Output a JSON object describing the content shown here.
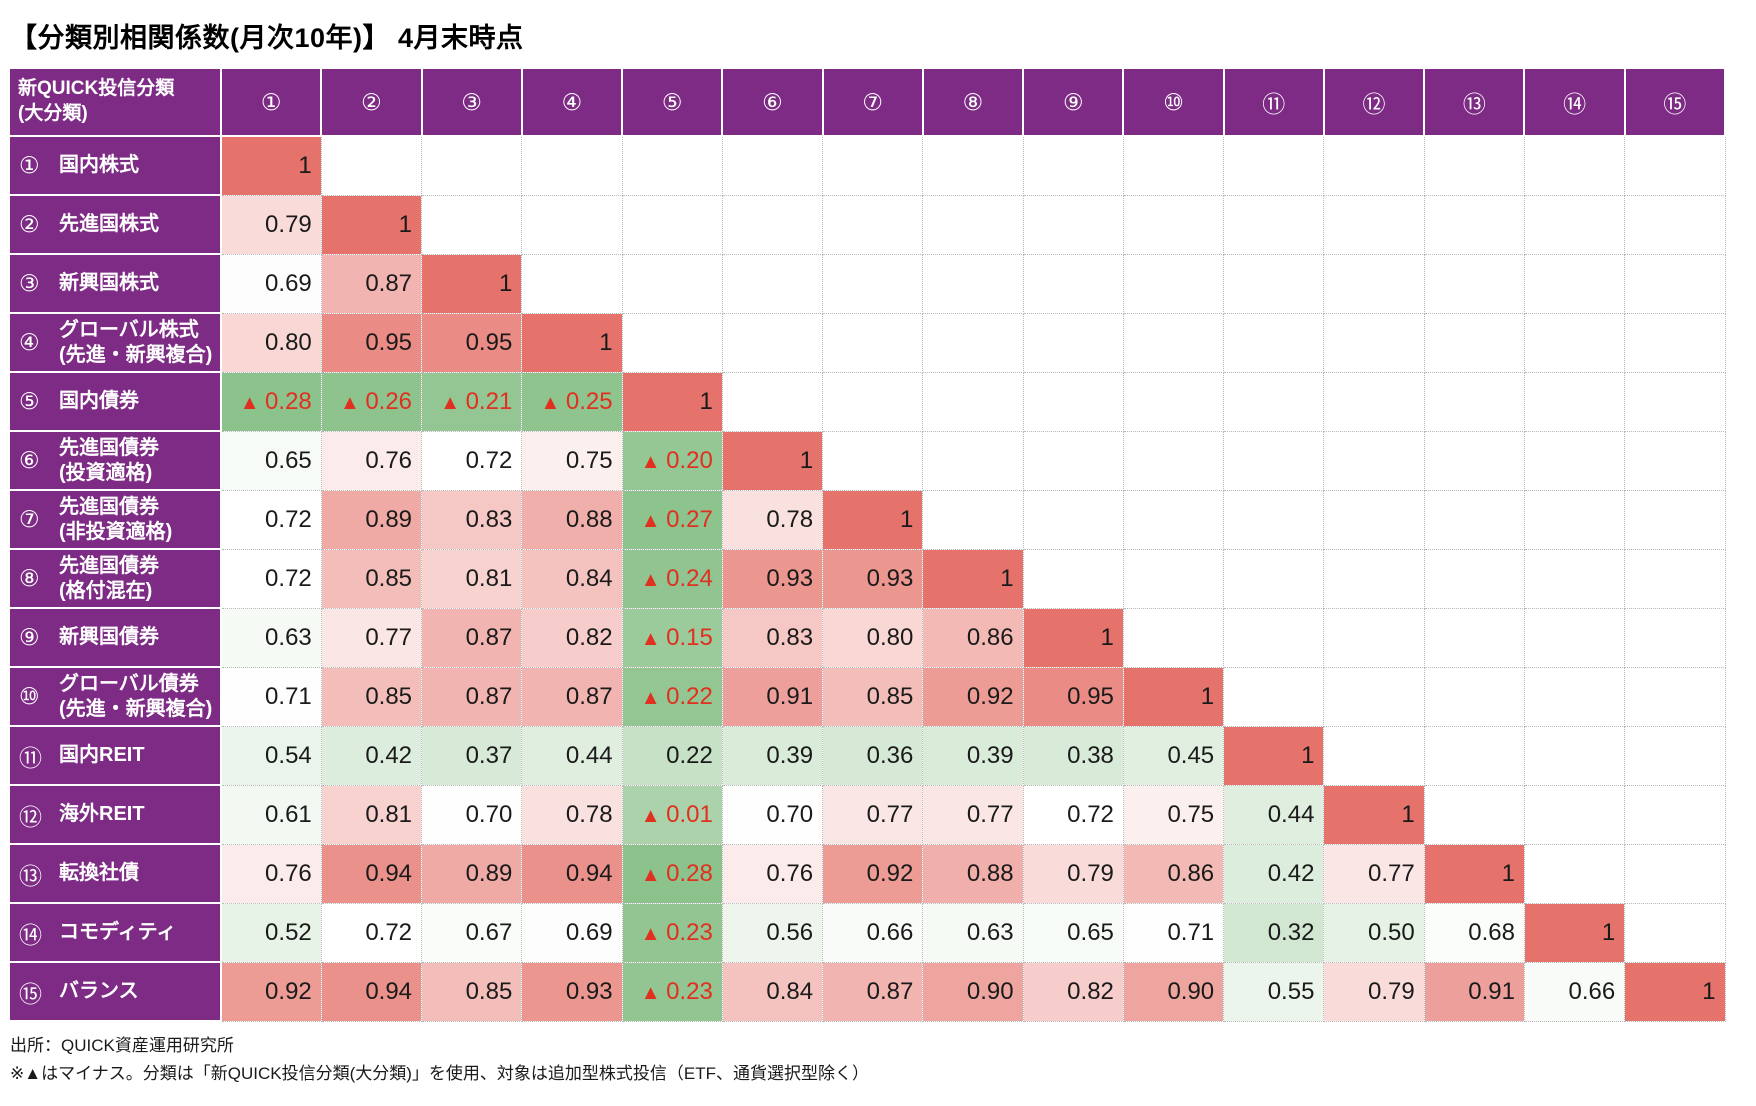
{
  "title": "【分類別相関係数(月次10年)】 4月末時点",
  "table": {
    "corner_header_lines": [
      "新QUICK投信分類",
      "(大分類)"
    ],
    "col_headers": [
      "①",
      "②",
      "③",
      "④",
      "⑤",
      "⑥",
      "⑦",
      "⑧",
      "⑨",
      "⑩",
      "⑪",
      "⑫",
      "⑬",
      "⑭",
      "⑮"
    ],
    "row_headers": [
      {
        "num": "①",
        "lines": [
          "国内株式"
        ]
      },
      {
        "num": "②",
        "lines": [
          "先進国株式"
        ]
      },
      {
        "num": "③",
        "lines": [
          "新興国株式"
        ]
      },
      {
        "num": "④",
        "lines": [
          "グローバル株式",
          "(先進・新興複合)"
        ]
      },
      {
        "num": "⑤",
        "lines": [
          "国内債券"
        ]
      },
      {
        "num": "⑥",
        "lines": [
          "先進国債券",
          "(投資適格)"
        ]
      },
      {
        "num": "⑦",
        "lines": [
          "先進国債券",
          "(非投資適格)"
        ]
      },
      {
        "num": "⑧",
        "lines": [
          "先進国債券",
          "(格付混在)"
        ]
      },
      {
        "num": "⑨",
        "lines": [
          "新興国債券"
        ]
      },
      {
        "num": "⑩",
        "lines": [
          "グローバル債券",
          "(先進・新興複合)"
        ]
      },
      {
        "num": "⑪",
        "lines": [
          "国内REIT"
        ]
      },
      {
        "num": "⑫",
        "lines": [
          "海外REIT"
        ]
      },
      {
        "num": "⑬",
        "lines": [
          "転換社債"
        ]
      },
      {
        "num": "⑭",
        "lines": [
          "コモディティ"
        ]
      },
      {
        "num": "⑮",
        "lines": [
          "バランス"
        ]
      }
    ]
  },
  "chart_data": {
    "type": "heatmap",
    "title": "【分類別相関係数(月次10年)】 4月末時点",
    "row_labels": [
      "① 国内株式",
      "② 先進国株式",
      "③ 新興国株式",
      "④ グローバル株式(先進・新興複合)",
      "⑤ 国内債券",
      "⑥ 先進国債券(投資適格)",
      "⑦ 先進国債券(非投資適格)",
      "⑧ 先進国債券(格付混在)",
      "⑨ 新興国債券",
      "⑩ グローバル債券(先進・新興複合)",
      "⑪ 国内REIT",
      "⑫ 海外REIT",
      "⑬ 転換社債",
      "⑭ コモディティ",
      "⑮ バランス"
    ],
    "col_labels": [
      "①",
      "②",
      "③",
      "④",
      "⑤",
      "⑥",
      "⑦",
      "⑧",
      "⑨",
      "⑩",
      "⑪",
      "⑫",
      "⑬",
      "⑭",
      "⑮"
    ],
    "matrix": [
      [
        1
      ],
      [
        0.79,
        1
      ],
      [
        0.69,
        0.87,
        1
      ],
      [
        0.8,
        0.95,
        0.95,
        1
      ],
      [
        -0.28,
        -0.26,
        -0.21,
        -0.25,
        1
      ],
      [
        0.65,
        0.76,
        0.72,
        0.75,
        -0.2,
        1
      ],
      [
        0.72,
        0.89,
        0.83,
        0.88,
        -0.27,
        0.78,
        1
      ],
      [
        0.72,
        0.85,
        0.81,
        0.84,
        -0.24,
        0.93,
        0.93,
        1
      ],
      [
        0.63,
        0.77,
        0.87,
        0.82,
        -0.15,
        0.83,
        0.8,
        0.86,
        1
      ],
      [
        0.71,
        0.85,
        0.87,
        0.87,
        -0.22,
        0.91,
        0.85,
        0.92,
        0.95,
        1
      ],
      [
        0.54,
        0.42,
        0.37,
        0.44,
        0.22,
        0.39,
        0.36,
        0.39,
        0.38,
        0.45,
        1
      ],
      [
        0.61,
        0.81,
        0.7,
        0.78,
        -0.01,
        0.7,
        0.77,
        0.77,
        0.72,
        0.75,
        0.44,
        1
      ],
      [
        0.76,
        0.94,
        0.89,
        0.94,
        -0.28,
        0.76,
        0.92,
        0.88,
        0.79,
        0.86,
        0.42,
        0.77,
        1
      ],
      [
        0.52,
        0.72,
        0.67,
        0.69,
        -0.23,
        0.56,
        0.66,
        0.63,
        0.65,
        0.71,
        0.32,
        0.5,
        0.68,
        1
      ],
      [
        0.92,
        0.94,
        0.85,
        0.93,
        -0.23,
        0.84,
        0.87,
        0.9,
        0.82,
        0.9,
        0.55,
        0.79,
        0.91,
        0.66,
        1
      ]
    ],
    "negative_marker": "▲",
    "legend_position": "none",
    "grid": true
  },
  "colors": {
    "header_purple": "#7d2b84",
    "scale_max_color": "#e5736b",
    "scale_mid_color": "#ffffff",
    "scale_min_color": "#8cc28c",
    "scale_mid_value": 0.72,
    "scale_min_value": -0.28,
    "scale_max_value": 1,
    "negative_text": "#e0301f",
    "value_text": "#1a1a1a"
  },
  "footer": {
    "source": "出所：QUICK資産運用研究所",
    "note": "※▲はマイナス。分類は「新QUICK投信分類(大分類)」を使用、対象は追加型株式投信（ETF、通貨選択型除く）"
  }
}
